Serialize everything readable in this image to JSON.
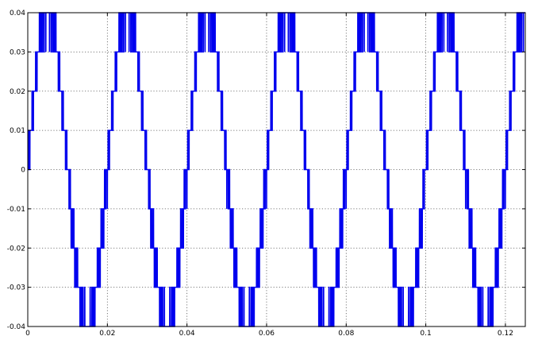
{
  "chart_data": {
    "type": "line",
    "title": "",
    "xlabel": "",
    "ylabel": "",
    "xlim": [
      0,
      0.125
    ],
    "ylim": [
      -0.04,
      0.04
    ],
    "grid": true,
    "grid_style": "dotted",
    "line_color": "#0000ee",
    "x_ticks": [
      0,
      0.02,
      0.04,
      0.06,
      0.08,
      0.1,
      0.12
    ],
    "x_tick_labels": [
      "0",
      "0.02",
      "0.04",
      "0.06",
      "0.08",
      "0.1",
      "0.12"
    ],
    "y_ticks": [
      -0.04,
      -0.03,
      -0.02,
      -0.01,
      0,
      0.01,
      0.02,
      0.03,
      0.04
    ],
    "y_tick_labels": [
      "-0.04",
      "-0.03",
      "-0.02",
      "-0.01",
      "0",
      "0.01",
      "0.02",
      "0.03",
      "0.04"
    ],
    "series": [
      {
        "frequency_hz": 50,
        "start_x": 0,
        "end_x": 0.125,
        "amplitude": 0.04,
        "levels": [
          -0.04,
          -0.03,
          -0.02,
          -0.01,
          0,
          0.01,
          0.02,
          0.03,
          0.04
        ],
        "x_flat_top": [
          [
            0.0028,
            0.0062
          ],
          [
            0.0228,
            0.0262
          ],
          [
            0.0428,
            0.0462
          ],
          [
            0.0628,
            0.0662
          ],
          [
            0.0828,
            0.0862
          ],
          [
            0.1028,
            0.1062
          ]
        ],
        "x_flat_bottom": [
          [
            0.0128,
            0.0162
          ],
          [
            0.0328,
            0.0362
          ],
          [
            0.0528,
            0.0562
          ],
          [
            0.0728,
            0.0762
          ],
          [
            0.0928,
            0.0962
          ],
          [
            0.1128,
            0.1162
          ]
        ]
      }
    ]
  }
}
